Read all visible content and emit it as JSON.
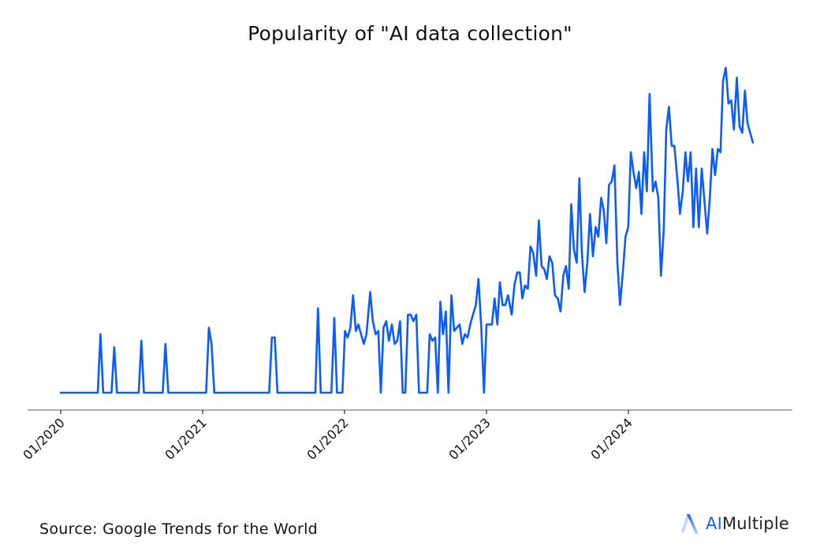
{
  "chart_data": {
    "type": "line",
    "title": "Popularity of \"AI data collection\"",
    "xlabel": "",
    "ylabel": "",
    "ylim": [
      0,
      100
    ],
    "grid": false,
    "legend": null,
    "line_color": "#0a5cff",
    "x_ticks": [
      "01/2020",
      "01/2021",
      "01/2022",
      "01/2023",
      "01/2024"
    ],
    "series": [
      {
        "name": "AI data collection",
        "points": [
          [
            "2020-01",
            0
          ],
          [
            "2020-04-05",
            0
          ],
          [
            "2020-04-12",
            18
          ],
          [
            "2020-04-19",
            0
          ],
          [
            "2020-05-10",
            0
          ],
          [
            "2020-05-17",
            14
          ],
          [
            "2020-05-24",
            0
          ],
          [
            "2020-07-19",
            0
          ],
          [
            "2020-07-26",
            16
          ],
          [
            "2020-08-02",
            0
          ],
          [
            "2020-09-20",
            0
          ],
          [
            "2020-09-27",
            15
          ],
          [
            "2020-10-04",
            0
          ],
          [
            "2021-01-10",
            0
          ],
          [
            "2021-01-17",
            20
          ],
          [
            "2021-01-24",
            15
          ],
          [
            "2021-01-31",
            0
          ],
          [
            "2021-06-20",
            0
          ],
          [
            "2021-06-27",
            17
          ],
          [
            "2021-07-04",
            17
          ],
          [
            "2021-07-11",
            0
          ],
          [
            "2021-10-17",
            0
          ],
          [
            "2021-10-24",
            26
          ],
          [
            "2021-10-31",
            0
          ],
          [
            "2021-11-28",
            0
          ],
          [
            "2021-12-05",
            23
          ],
          [
            "2021-12-12",
            0
          ],
          [
            "2021-12-26",
            0
          ],
          [
            "2022-01-02",
            19
          ],
          [
            "2022-01-09",
            17
          ],
          [
            "2022-01-16",
            20
          ],
          [
            "2022-01-23",
            30
          ],
          [
            "2022-01-30",
            19
          ],
          [
            "2022-02-06",
            21
          ],
          [
            "2022-02-13",
            18
          ],
          [
            "2022-02-20",
            15
          ],
          [
            "2022-02-27",
            18
          ],
          [
            "2022-03-06",
            31
          ],
          [
            "2022-03-13",
            22
          ],
          [
            "2022-03-20",
            18
          ],
          [
            "2022-03-27",
            19
          ],
          [
            "2022-04-03",
            0
          ],
          [
            "2022-04-10",
            20
          ],
          [
            "2022-04-17",
            22
          ],
          [
            "2022-04-24",
            16
          ],
          [
            "2022-05-01",
            21
          ],
          [
            "2022-05-08",
            15
          ],
          [
            "2022-05-15",
            16
          ],
          [
            "2022-05-22",
            22
          ],
          [
            "2022-05-29",
            0
          ],
          [
            "2022-06-05",
            0
          ],
          [
            "2022-06-12",
            24
          ],
          [
            "2022-06-19",
            24
          ],
          [
            "2022-06-26",
            22
          ],
          [
            "2022-07-03",
            24
          ],
          [
            "2022-07-10",
            0
          ],
          [
            "2022-07-17",
            0
          ],
          [
            "2022-07-24",
            0
          ],
          [
            "2022-07-31",
            0
          ],
          [
            "2022-08-07",
            18
          ],
          [
            "2022-08-14",
            16
          ],
          [
            "2022-08-21",
            17
          ],
          [
            "2022-08-28",
            0
          ],
          [
            "2022-09-04",
            28
          ],
          [
            "2022-09-11",
            18
          ],
          [
            "2022-09-18",
            25
          ],
          [
            "2022-09-25",
            0
          ],
          [
            "2022-10-02",
            30
          ],
          [
            "2022-10-09",
            19
          ],
          [
            "2022-10-16",
            20
          ],
          [
            "2022-10-23",
            21
          ],
          [
            "2022-10-30",
            15
          ],
          [
            "2022-11-06",
            18
          ],
          [
            "2022-11-13",
            17
          ],
          [
            "2022-11-20",
            21
          ],
          [
            "2022-11-27",
            24
          ],
          [
            "2022-12-04",
            27
          ],
          [
            "2022-12-11",
            35
          ],
          [
            "2022-12-18",
            20
          ],
          [
            "2022-12-25",
            0
          ],
          [
            "2023-01-01",
            21
          ],
          [
            "2023-01-08",
            21
          ],
          [
            "2023-01-15",
            21
          ],
          [
            "2023-01-22",
            29
          ],
          [
            "2023-01-29",
            21
          ],
          [
            "2023-02-05",
            34
          ],
          [
            "2023-02-12",
            27
          ],
          [
            "2023-02-19",
            27
          ],
          [
            "2023-02-26",
            30
          ],
          [
            "2023-03-05",
            24
          ],
          [
            "2023-03-12",
            33
          ],
          [
            "2023-03-19",
            37
          ],
          [
            "2023-03-26",
            37
          ],
          [
            "2023-04-02",
            29
          ],
          [
            "2023-04-09",
            33
          ],
          [
            "2023-04-16",
            32
          ],
          [
            "2023-04-23",
            45
          ],
          [
            "2023-04-30",
            43
          ],
          [
            "2023-05-07",
            36
          ],
          [
            "2023-05-14",
            53
          ],
          [
            "2023-05-21",
            39
          ],
          [
            "2023-05-28",
            38
          ],
          [
            "2023-06-04",
            35
          ],
          [
            "2023-06-11",
            42
          ],
          [
            "2023-06-18",
            40
          ],
          [
            "2023-06-25",
            30
          ],
          [
            "2023-07-02",
            29
          ],
          [
            "2023-07-09",
            25
          ],
          [
            "2023-07-16",
            36
          ],
          [
            "2023-07-23",
            39
          ],
          [
            "2023-07-30",
            32
          ],
          [
            "2023-08-06",
            58
          ],
          [
            "2023-08-13",
            44
          ],
          [
            "2023-08-20",
            40
          ],
          [
            "2023-08-27",
            66
          ],
          [
            "2023-09-03",
            43
          ],
          [
            "2023-09-10",
            31
          ],
          [
            "2023-09-17",
            40
          ],
          [
            "2023-09-24",
            55
          ],
          [
            "2023-10-01",
            42
          ],
          [
            "2023-10-08",
            51
          ],
          [
            "2023-10-15",
            48
          ],
          [
            "2023-10-22",
            60
          ],
          [
            "2023-10-29",
            56
          ],
          [
            "2023-11-05",
            46
          ],
          [
            "2023-11-12",
            64
          ],
          [
            "2023-11-19",
            65
          ],
          [
            "2023-11-26",
            70
          ],
          [
            "2023-12-03",
            40
          ],
          [
            "2023-12-10",
            27
          ],
          [
            "2023-12-17",
            37
          ],
          [
            "2023-12-24",
            48
          ],
          [
            "2023-12-31",
            51
          ],
          [
            "2024-01-07",
            74
          ],
          [
            "2024-01-14",
            68
          ],
          [
            "2024-01-21",
            63
          ],
          [
            "2024-01-28",
            68
          ],
          [
            "2024-02-04",
            55
          ],
          [
            "2024-02-11",
            74
          ],
          [
            "2024-02-18",
            62
          ],
          [
            "2024-02-25",
            92
          ],
          [
            "2024-03-03",
            62
          ],
          [
            "2024-03-10",
            65
          ],
          [
            "2024-03-17",
            60
          ],
          [
            "2024-03-24",
            36
          ],
          [
            "2024-03-31",
            50
          ],
          [
            "2024-04-07",
            81
          ],
          [
            "2024-04-14",
            88
          ],
          [
            "2024-04-21",
            76
          ],
          [
            "2024-04-28",
            76
          ],
          [
            "2024-05-05",
            66
          ],
          [
            "2024-05-12",
            55
          ],
          [
            "2024-05-19",
            62
          ],
          [
            "2024-05-26",
            74
          ],
          [
            "2024-06-02",
            65
          ],
          [
            "2024-06-09",
            74
          ],
          [
            "2024-06-16",
            51
          ],
          [
            "2024-06-23",
            69
          ],
          [
            "2024-06-30",
            51
          ],
          [
            "2024-07-07",
            69
          ],
          [
            "2024-07-14",
            59
          ],
          [
            "2024-07-21",
            49
          ],
          [
            "2024-07-28",
            60
          ],
          [
            "2024-08-04",
            75
          ],
          [
            "2024-08-11",
            67
          ],
          [
            "2024-08-18",
            75
          ],
          [
            "2024-08-25",
            74
          ],
          [
            "2024-09-01",
            96
          ],
          [
            "2024-09-08",
            100
          ],
          [
            "2024-09-15",
            89
          ],
          [
            "2024-09-22",
            90
          ],
          [
            "2024-09-29",
            81
          ],
          [
            "2024-10-06",
            97
          ],
          [
            "2024-10-13",
            82
          ],
          [
            "2024-10-20",
            80
          ],
          [
            "2024-10-27",
            93
          ],
          [
            "2024-11-03",
            83
          ],
          [
            "2024-11-10",
            80
          ],
          [
            "2024-11-17",
            77
          ]
        ]
      }
    ]
  },
  "footer": {
    "source": "Source: Google Trends for the World",
    "brand_ai": "AI",
    "brand_rest": "Multiple"
  }
}
